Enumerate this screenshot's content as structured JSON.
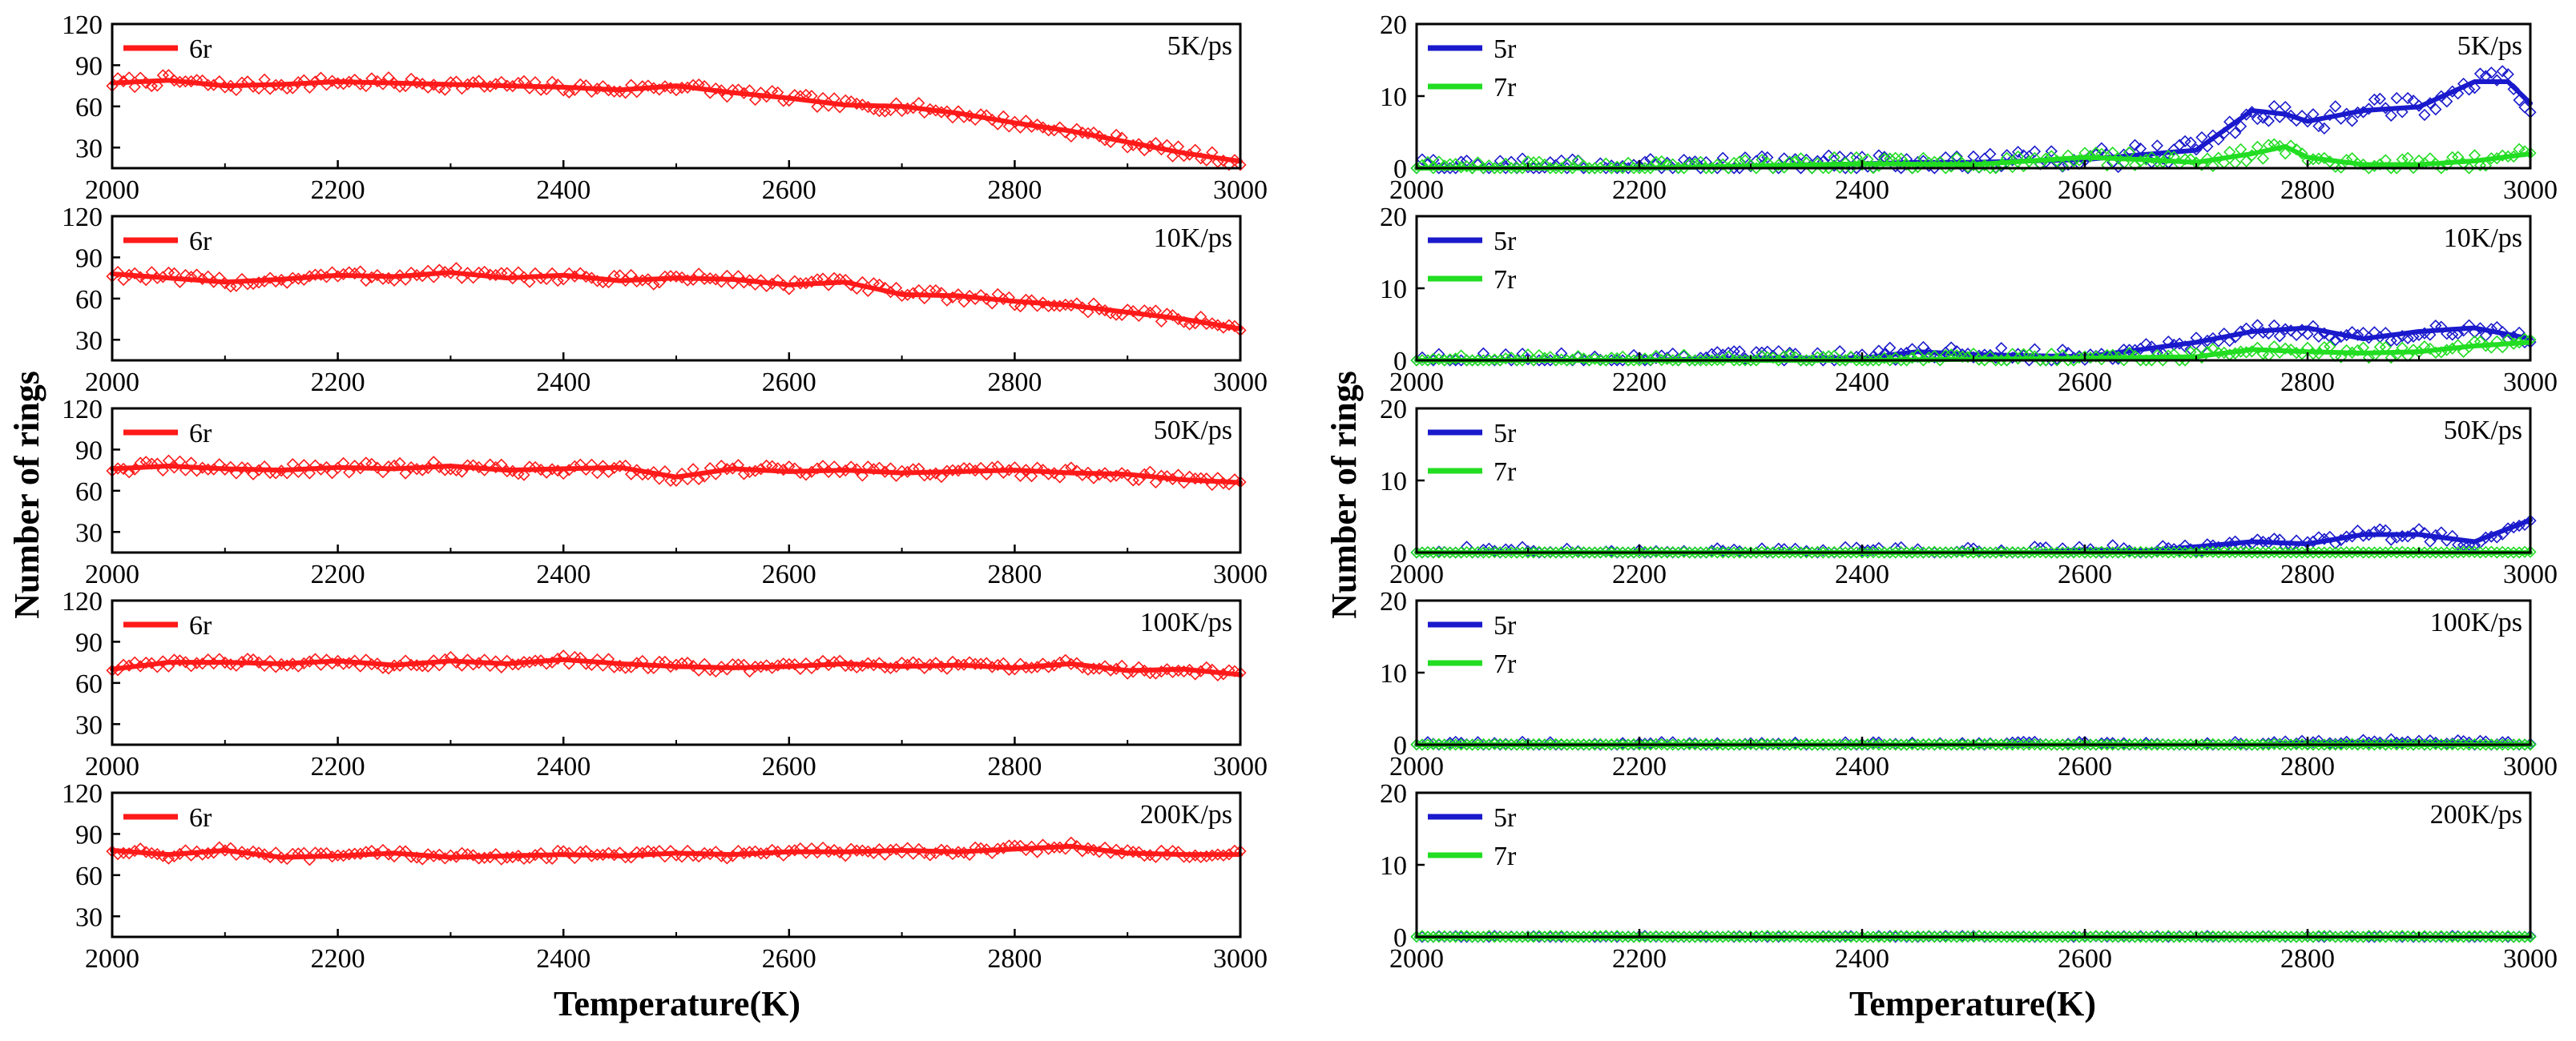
{
  "figure": {
    "xlabel": "Temperature(K)",
    "ylabel": "Number of rings"
  },
  "colors": {
    "6r": "#ff1a1a",
    "5r": "#1a1acc",
    "7r": "#22dd22",
    "axis": "#000000"
  },
  "chart_data": [
    {
      "id": "L1",
      "column": "left",
      "type": "scatter+line",
      "rate_label": "5K/ps",
      "xlim": [
        2000,
        3000
      ],
      "ylim": [
        15,
        120
      ],
      "xticks": [
        "2000",
        "2200",
        "2400",
        "2600",
        "2800",
        "3000"
      ],
      "yticks": [
        "30",
        "60",
        "90",
        "120"
      ],
      "series": [
        {
          "name": "6r",
          "legend": "6r",
          "color": "#ff1a1a",
          "trend_x": [
            2000,
            2050,
            2100,
            2150,
            2200,
            2250,
            2300,
            2350,
            2400,
            2450,
            2500,
            2550,
            2600,
            2650,
            2700,
            2750,
            2800,
            2850,
            2900,
            2950,
            3000
          ],
          "trend_y": [
            77,
            79,
            75,
            76,
            78,
            77,
            76,
            75,
            74,
            72,
            75,
            70,
            66,
            61,
            60,
            55,
            48,
            42,
            34,
            26,
            20
          ],
          "noise": 4
        }
      ]
    },
    {
      "id": "L2",
      "column": "left",
      "type": "scatter+line",
      "rate_label": "10K/ps",
      "xlim": [
        2000,
        3000
      ],
      "ylim": [
        15,
        120
      ],
      "xticks": [
        "2000",
        "2200",
        "2400",
        "2600",
        "2800",
        "3000"
      ],
      "yticks": [
        "30",
        "60",
        "90",
        "120"
      ],
      "series": [
        {
          "name": "6r",
          "legend": "6r",
          "color": "#ff1a1a",
          "trend_x": [
            2000,
            2050,
            2100,
            2150,
            2200,
            2250,
            2300,
            2350,
            2400,
            2450,
            2500,
            2550,
            2600,
            2650,
            2700,
            2750,
            2800,
            2850,
            2900,
            2950,
            3000
          ],
          "trend_y": [
            78,
            75,
            72,
            74,
            77,
            76,
            79,
            75,
            77,
            73,
            75,
            74,
            70,
            72,
            63,
            62,
            58,
            55,
            50,
            45,
            38
          ],
          "noise": 4
        }
      ]
    },
    {
      "id": "L3",
      "column": "left",
      "type": "scatter+line",
      "rate_label": "50K/ps",
      "xlim": [
        2000,
        3000
      ],
      "ylim": [
        15,
        120
      ],
      "xticks": [
        "2000",
        "2200",
        "2400",
        "2600",
        "2800",
        "3000"
      ],
      "yticks": [
        "30",
        "60",
        "90",
        "120"
      ],
      "series": [
        {
          "name": "6r",
          "legend": "6r",
          "color": "#ff1a1a",
          "trend_x": [
            2000,
            2050,
            2100,
            2150,
            2200,
            2250,
            2300,
            2350,
            2400,
            2450,
            2500,
            2550,
            2600,
            2650,
            2700,
            2750,
            2800,
            2850,
            2900,
            2950,
            3000
          ],
          "trend_y": [
            76,
            78,
            76,
            75,
            77,
            76,
            78,
            75,
            76,
            77,
            70,
            76,
            74,
            75,
            73,
            74,
            75,
            73,
            72,
            68,
            66
          ],
          "noise": 4
        }
      ]
    },
    {
      "id": "L4",
      "column": "left",
      "type": "scatter+line",
      "rate_label": "100K/ps",
      "xlim": [
        2000,
        3000
      ],
      "ylim": [
        15,
        120
      ],
      "xticks": [
        "2000",
        "2200",
        "2400",
        "2600",
        "2800",
        "3000"
      ],
      "yticks": [
        "30",
        "60",
        "90",
        "120"
      ],
      "series": [
        {
          "name": "6r",
          "legend": "6r",
          "color": "#ff1a1a",
          "trend_x": [
            2000,
            2050,
            2100,
            2150,
            2200,
            2250,
            2300,
            2350,
            2400,
            2450,
            2500,
            2550,
            2600,
            2650,
            2700,
            2750,
            2800,
            2850,
            2900,
            2950,
            3000
          ],
          "trend_y": [
            70,
            75,
            75,
            74,
            76,
            73,
            76,
            74,
            77,
            74,
            72,
            71,
            72,
            74,
            72,
            73,
            71,
            74,
            69,
            70,
            66
          ],
          "noise": 3
        }
      ]
    },
    {
      "id": "L5",
      "column": "left",
      "type": "scatter+line",
      "rate_label": "200K/ps",
      "xlim": [
        2000,
        3000
      ],
      "ylim": [
        15,
        120
      ],
      "xticks": [
        "2000",
        "2200",
        "2400",
        "2600",
        "2800",
        "3000"
      ],
      "yticks": [
        "30",
        "60",
        "90",
        "120"
      ],
      "series": [
        {
          "name": "6r",
          "legend": "6r",
          "color": "#ff1a1a",
          "trend_x": [
            2000,
            2050,
            2100,
            2150,
            2200,
            2250,
            2300,
            2350,
            2400,
            2450,
            2500,
            2550,
            2600,
            2650,
            2700,
            2750,
            2800,
            2850,
            2900,
            2950,
            3000
          ],
          "trend_y": [
            78,
            75,
            78,
            73,
            74,
            76,
            73,
            74,
            75,
            74,
            76,
            75,
            77,
            77,
            78,
            77,
            79,
            81,
            76,
            75,
            75
          ],
          "noise": 3
        }
      ]
    },
    {
      "id": "R1",
      "column": "right",
      "type": "scatter+line",
      "rate_label": "5K/ps",
      "xlim": [
        2000,
        3000
      ],
      "ylim": [
        0,
        20
      ],
      "xticks": [
        "2000",
        "2200",
        "2400",
        "2600",
        "2800",
        "3000"
      ],
      "yticks": [
        "0",
        "10",
        "20"
      ],
      "series": [
        {
          "name": "5r",
          "legend": "5r",
          "color": "#1a1acc",
          "trend_x": [
            2000,
            2100,
            2200,
            2300,
            2400,
            2450,
            2500,
            2600,
            2700,
            2750,
            2780,
            2800,
            2850,
            2900,
            2950,
            2980,
            3000
          ],
          "trend_y": [
            0,
            0,
            0,
            0.3,
            0.6,
            0.8,
            0.8,
            1.2,
            2.5,
            8,
            7.5,
            6.5,
            8,
            8.5,
            12,
            12,
            9
          ],
          "noise": 1.5
        },
        {
          "name": "7r",
          "legend": "7r",
          "color": "#22dd22",
          "trend_x": [
            2000,
            2100,
            2200,
            2300,
            2400,
            2500,
            2600,
            2650,
            2700,
            2750,
            2780,
            2800,
            2850,
            2900,
            2950,
            3000
          ],
          "trend_y": [
            0,
            0,
            0,
            0.3,
            0.6,
            0.5,
            1.5,
            1.2,
            0.8,
            2,
            3,
            1.5,
            0.5,
            0.5,
            1,
            2
          ],
          "noise": 1
        }
      ]
    },
    {
      "id": "R2",
      "column": "right",
      "type": "scatter+line",
      "rate_label": "10K/ps",
      "xlim": [
        2000,
        3000
      ],
      "ylim": [
        0,
        20
      ],
      "xticks": [
        "2000",
        "2200",
        "2400",
        "2600",
        "2800",
        "3000"
      ],
      "yticks": [
        "0",
        "10",
        "20"
      ],
      "series": [
        {
          "name": "5r",
          "legend": "5r",
          "color": "#1a1acc",
          "trend_x": [
            2000,
            2200,
            2300,
            2400,
            2450,
            2500,
            2600,
            2650,
            2700,
            2750,
            2800,
            2850,
            2900,
            2950,
            3000
          ],
          "trend_y": [
            0,
            0,
            0.3,
            0.3,
            1.2,
            0.8,
            0.5,
            1.5,
            2.5,
            4,
            4.5,
            3,
            4,
            4.5,
            3
          ],
          "noise": 1
        },
        {
          "name": "7r",
          "legend": "7r",
          "color": "#22dd22",
          "trend_x": [
            2000,
            2200,
            2400,
            2600,
            2700,
            2750,
            2800,
            2850,
            2900,
            2950,
            3000
          ],
          "trend_y": [
            0,
            0,
            0,
            0.3,
            0.5,
            1.5,
            1.2,
            1,
            1.2,
            2,
            2.5
          ],
          "noise": 0.8
        }
      ]
    },
    {
      "id": "R3",
      "column": "right",
      "type": "scatter+line",
      "rate_label": "50K/ps",
      "xlim": [
        2000,
        3000
      ],
      "ylim": [
        0,
        20
      ],
      "xticks": [
        "2000",
        "2200",
        "2400",
        "2600",
        "2800",
        "3000"
      ],
      "yticks": [
        "0",
        "10",
        "20"
      ],
      "series": [
        {
          "name": "5r",
          "legend": "5r",
          "color": "#1a1acc",
          "trend_x": [
            2000,
            2200,
            2400,
            2550,
            2600,
            2650,
            2700,
            2750,
            2800,
            2850,
            2900,
            2950,
            3000
          ],
          "trend_y": [
            0,
            0,
            0,
            0,
            0.4,
            0.2,
            0.8,
            1.5,
            1.2,
            2.5,
            2.5,
            1.5,
            4.5
          ],
          "noise": 0.8
        },
        {
          "name": "7r",
          "legend": "7r",
          "color": "#22dd22",
          "trend_x": [
            2000,
            2500,
            3000
          ],
          "trend_y": [
            0,
            0,
            0
          ],
          "noise": 0.1
        }
      ]
    },
    {
      "id": "R4",
      "column": "right",
      "type": "scatter+line",
      "rate_label": "100K/ps",
      "xlim": [
        2000,
        3000
      ],
      "ylim": [
        0,
        20
      ],
      "xticks": [
        "2000",
        "2200",
        "2400",
        "2600",
        "2800",
        "3000"
      ],
      "yticks": [
        "0",
        "10",
        "20"
      ],
      "series": [
        {
          "name": "5r",
          "legend": "5r",
          "color": "#1a1acc",
          "trend_x": [
            2000,
            2500,
            2760,
            2800,
            2900,
            2950,
            3000
          ],
          "trend_y": [
            0,
            0,
            0,
            0.3,
            0.4,
            0.2,
            0
          ],
          "noise": 0.4
        },
        {
          "name": "7r",
          "legend": "7r",
          "color": "#22dd22",
          "trend_x": [
            2000,
            2500,
            3000
          ],
          "trend_y": [
            0,
            0,
            0
          ],
          "noise": 0.1
        }
      ]
    },
    {
      "id": "R5",
      "column": "right",
      "type": "scatter+line",
      "rate_label": "200K/ps",
      "xlim": [
        2000,
        3000
      ],
      "ylim": [
        0,
        20
      ],
      "xticks": [
        "2000",
        "2200",
        "2400",
        "2600",
        "2800",
        "3000"
      ],
      "yticks": [
        "0",
        "10",
        "20"
      ],
      "series": [
        {
          "name": "5r",
          "legend": "5r",
          "color": "#1a1acc",
          "trend_x": [
            2000,
            2500,
            3000
          ],
          "trend_y": [
            0,
            0,
            0
          ],
          "noise": 0.15
        },
        {
          "name": "7r",
          "legend": "7r",
          "color": "#22dd22",
          "trend_x": [
            2000,
            2500,
            3000
          ],
          "trend_y": [
            0,
            0,
            0
          ],
          "noise": 0.15
        }
      ]
    }
  ]
}
